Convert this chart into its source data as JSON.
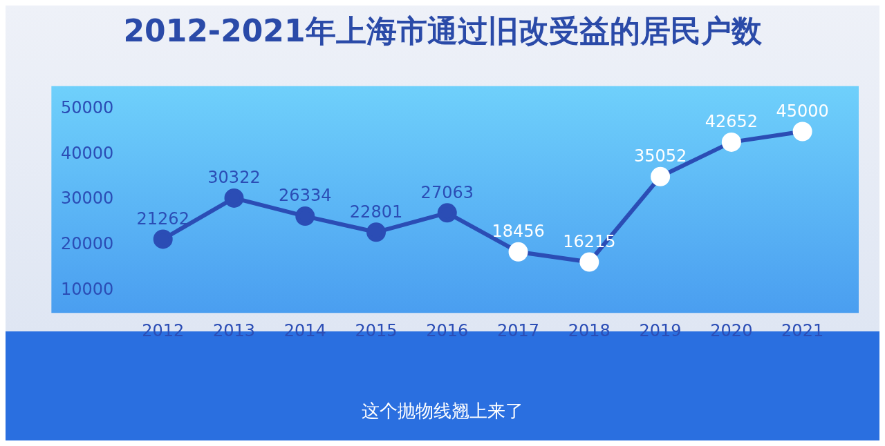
{
  "chart_data": {
    "type": "line",
    "title": "2012-2021年上海市通过旧改受益的居民户数",
    "categories": [
      "2012",
      "2013",
      "2014",
      "2015",
      "2016",
      "2017",
      "2018",
      "2019",
      "2020",
      "2021"
    ],
    "series": [
      {
        "color": "#2b4db5",
        "values": [
          21262,
          30322,
          26334,
          22801,
          27063,
          18456,
          16215,
          35052,
          42652,
          45000
        ],
        "colors": [
          "#2b4db5",
          "#2b4db5",
          "#2b4db5",
          "#2b4db5",
          "#2b4db5",
          "#ffffff",
          "#ffffff",
          "#ffffff",
          "#ffffff",
          "#ffffff"
        ]
      }
    ],
    "ylim": [
      5000,
      55000
    ],
    "yticks": [
      10000,
      20000,
      30000,
      40000,
      50000
    ],
    "grid": false,
    "legend": false,
    "marker": "circle",
    "line_style": "solid",
    "data_labels": true,
    "annotations": [
      "这个抛物线翘上来了"
    ]
  }
}
